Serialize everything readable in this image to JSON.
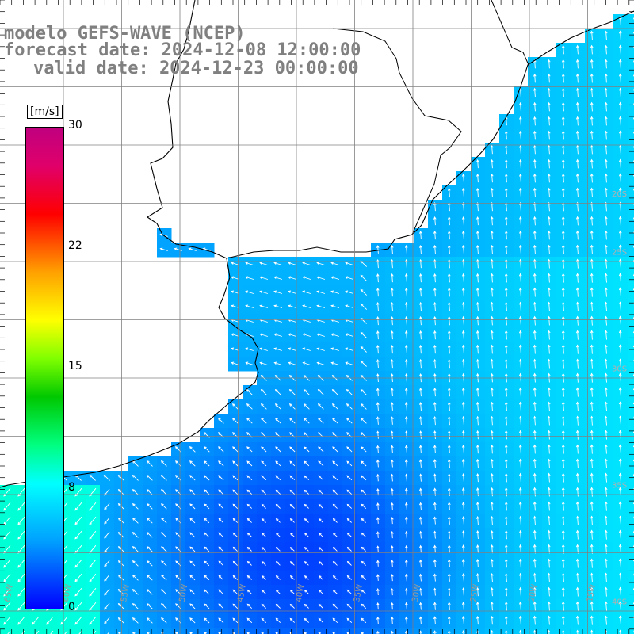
{
  "title": {
    "line1": "modelo GEFS-WAVE (NCEP)",
    "line2": "forecast date: 2024-12-08 12:00:00",
    "line3": "valid date: 2024-12-23 00:00:00"
  },
  "colorbar": {
    "unit": "[m/s]",
    "ticks": [
      "30",
      "22",
      "15",
      "8",
      "0"
    ],
    "colors": [
      "#0000ff",
      "#00a0ff",
      "#00ffff",
      "#00ff80",
      "#00c800",
      "#80ff00",
      "#ffff00",
      "#ffa000",
      "#ff0000",
      "#c0007f"
    ]
  },
  "grid": {
    "longitude_labels": [
      "65W",
      "60W",
      "55W",
      "50W",
      "45W",
      "40W",
      "35W",
      "30W",
      "25W",
      "20W",
      "15W"
    ],
    "latitude_labels": [
      "20S",
      "25S",
      "30S",
      "35S",
      "40S"
    ]
  },
  "map": {
    "land_color": "#ffffff",
    "coast_color": "#000000",
    "grid_color": "#808080"
  }
}
